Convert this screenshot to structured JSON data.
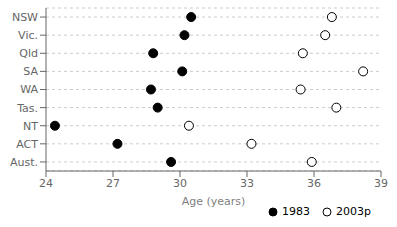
{
  "chart_data": {
    "type": "scatter",
    "orientation": "horizontal",
    "categories": [
      "NSW",
      "Vic.",
      "Qld",
      "SA",
      "WA",
      "Tas.",
      "NT",
      "ACT",
      "Aust."
    ],
    "series": [
      {
        "name": "1983",
        "color": "black",
        "marker": "circle",
        "values": [
          30.5,
          30.2,
          28.8,
          30.1,
          28.7,
          29.0,
          24.4,
          27.2,
          29.6
        ]
      },
      {
        "name": "2003p",
        "color": "white",
        "marker": "circle",
        "values": [
          36.8,
          36.5,
          35.5,
          38.2,
          35.4,
          37.0,
          30.4,
          33.2,
          35.9
        ]
      }
    ],
    "xlabel": "Age (years)",
    "xlim": [
      24,
      39
    ],
    "xticks": [
      24,
      27,
      30,
      33,
      36,
      39
    ],
    "grid": true,
    "legend": "lower right"
  }
}
